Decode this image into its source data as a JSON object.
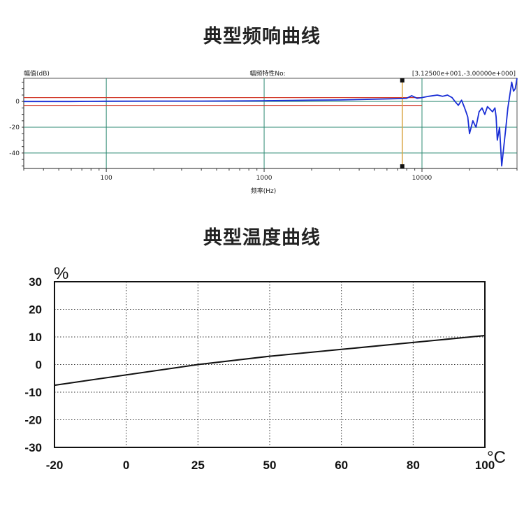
{
  "titles": {
    "freq_chart": "典型频响曲线",
    "temp_chart": "典型温度曲线"
  },
  "chart_data": [
    {
      "type": "line",
      "xscale": "log",
      "xlabel": "频率(Hz)",
      "ylabel": "幅值(dB)",
      "header_center": "幅频特性No:",
      "header_right": "[3.12500e+001,-3.00000e+000]",
      "xlim": [
        30,
        40000
      ],
      "ylim": [
        -52,
        18
      ],
      "x_ticks": [
        100,
        1000,
        10000
      ],
      "x_tick_labels": [
        "100",
        "1000",
        "10000"
      ],
      "y_ticks": [
        0,
        -20,
        -40
      ],
      "y_tick_labels": [
        "0",
        "-20",
        "-40"
      ],
      "grid": true,
      "cursor_x": 7500,
      "limit_lines": [
        {
          "y": 3,
          "x_end": 10000,
          "color": "#d23a2a"
        },
        {
          "y": -3,
          "x_end": 10000,
          "color": "#d23a2a"
        }
      ],
      "series": [
        {
          "color": "#1a2fd6",
          "x": [
            30,
            60,
            100,
            200,
            400,
            800,
            1000,
            1500,
            2000,
            3000,
            4000,
            5000,
            6000,
            7000,
            8000,
            8600,
            9300,
            10000,
            11000,
            12500,
            13500,
            14500,
            15500,
            16200,
            17000,
            17800,
            18500,
            19000,
            19500,
            20000,
            21000,
            22000,
            23000,
            24000,
            25000,
            26000,
            27000,
            28000,
            29000,
            29500,
            30000,
            31000,
            32000,
            33000,
            34000,
            35000,
            36000,
            37000,
            38000,
            39000,
            40000
          ],
          "y": [
            0,
            0,
            0.2,
            0.3,
            0.3,
            0.5,
            0.6,
            0.8,
            1,
            1.2,
            1.5,
            1.8,
            2,
            2.2,
            2.5,
            4.5,
            2.5,
            3,
            4,
            5,
            4,
            5,
            3,
            0,
            -3,
            1,
            -4,
            -8,
            -12,
            -25,
            -15,
            -20,
            -8,
            -5,
            -10,
            -4,
            -6,
            -8,
            -5,
            -12,
            -30,
            -20,
            -50,
            -35,
            -20,
            -5,
            5,
            15,
            8,
            10,
            18
          ]
        }
      ]
    },
    {
      "type": "line",
      "xlabel": "",
      "ylabel": "",
      "x_unit": "°C",
      "y_unit": "%",
      "x_tick_labels": [
        "-20",
        "0",
        "25",
        "50",
        "60",
        "80",
        "100"
      ],
      "y_ticks": [
        30,
        20,
        10,
        0,
        -10,
        -20,
        -30
      ],
      "y_tick_labels": [
        "30",
        "20",
        "10",
        "0",
        "-10",
        "-20",
        "-30"
      ],
      "ylim": [
        -30,
        30
      ],
      "grid": "dotted",
      "series": [
        {
          "color": "#111111",
          "x_category_index": [
            0,
            2,
            3,
            4,
            5,
            6
          ],
          "y": [
            -7.5,
            0,
            3,
            5.5,
            8,
            10.5
          ]
        }
      ]
    }
  ]
}
